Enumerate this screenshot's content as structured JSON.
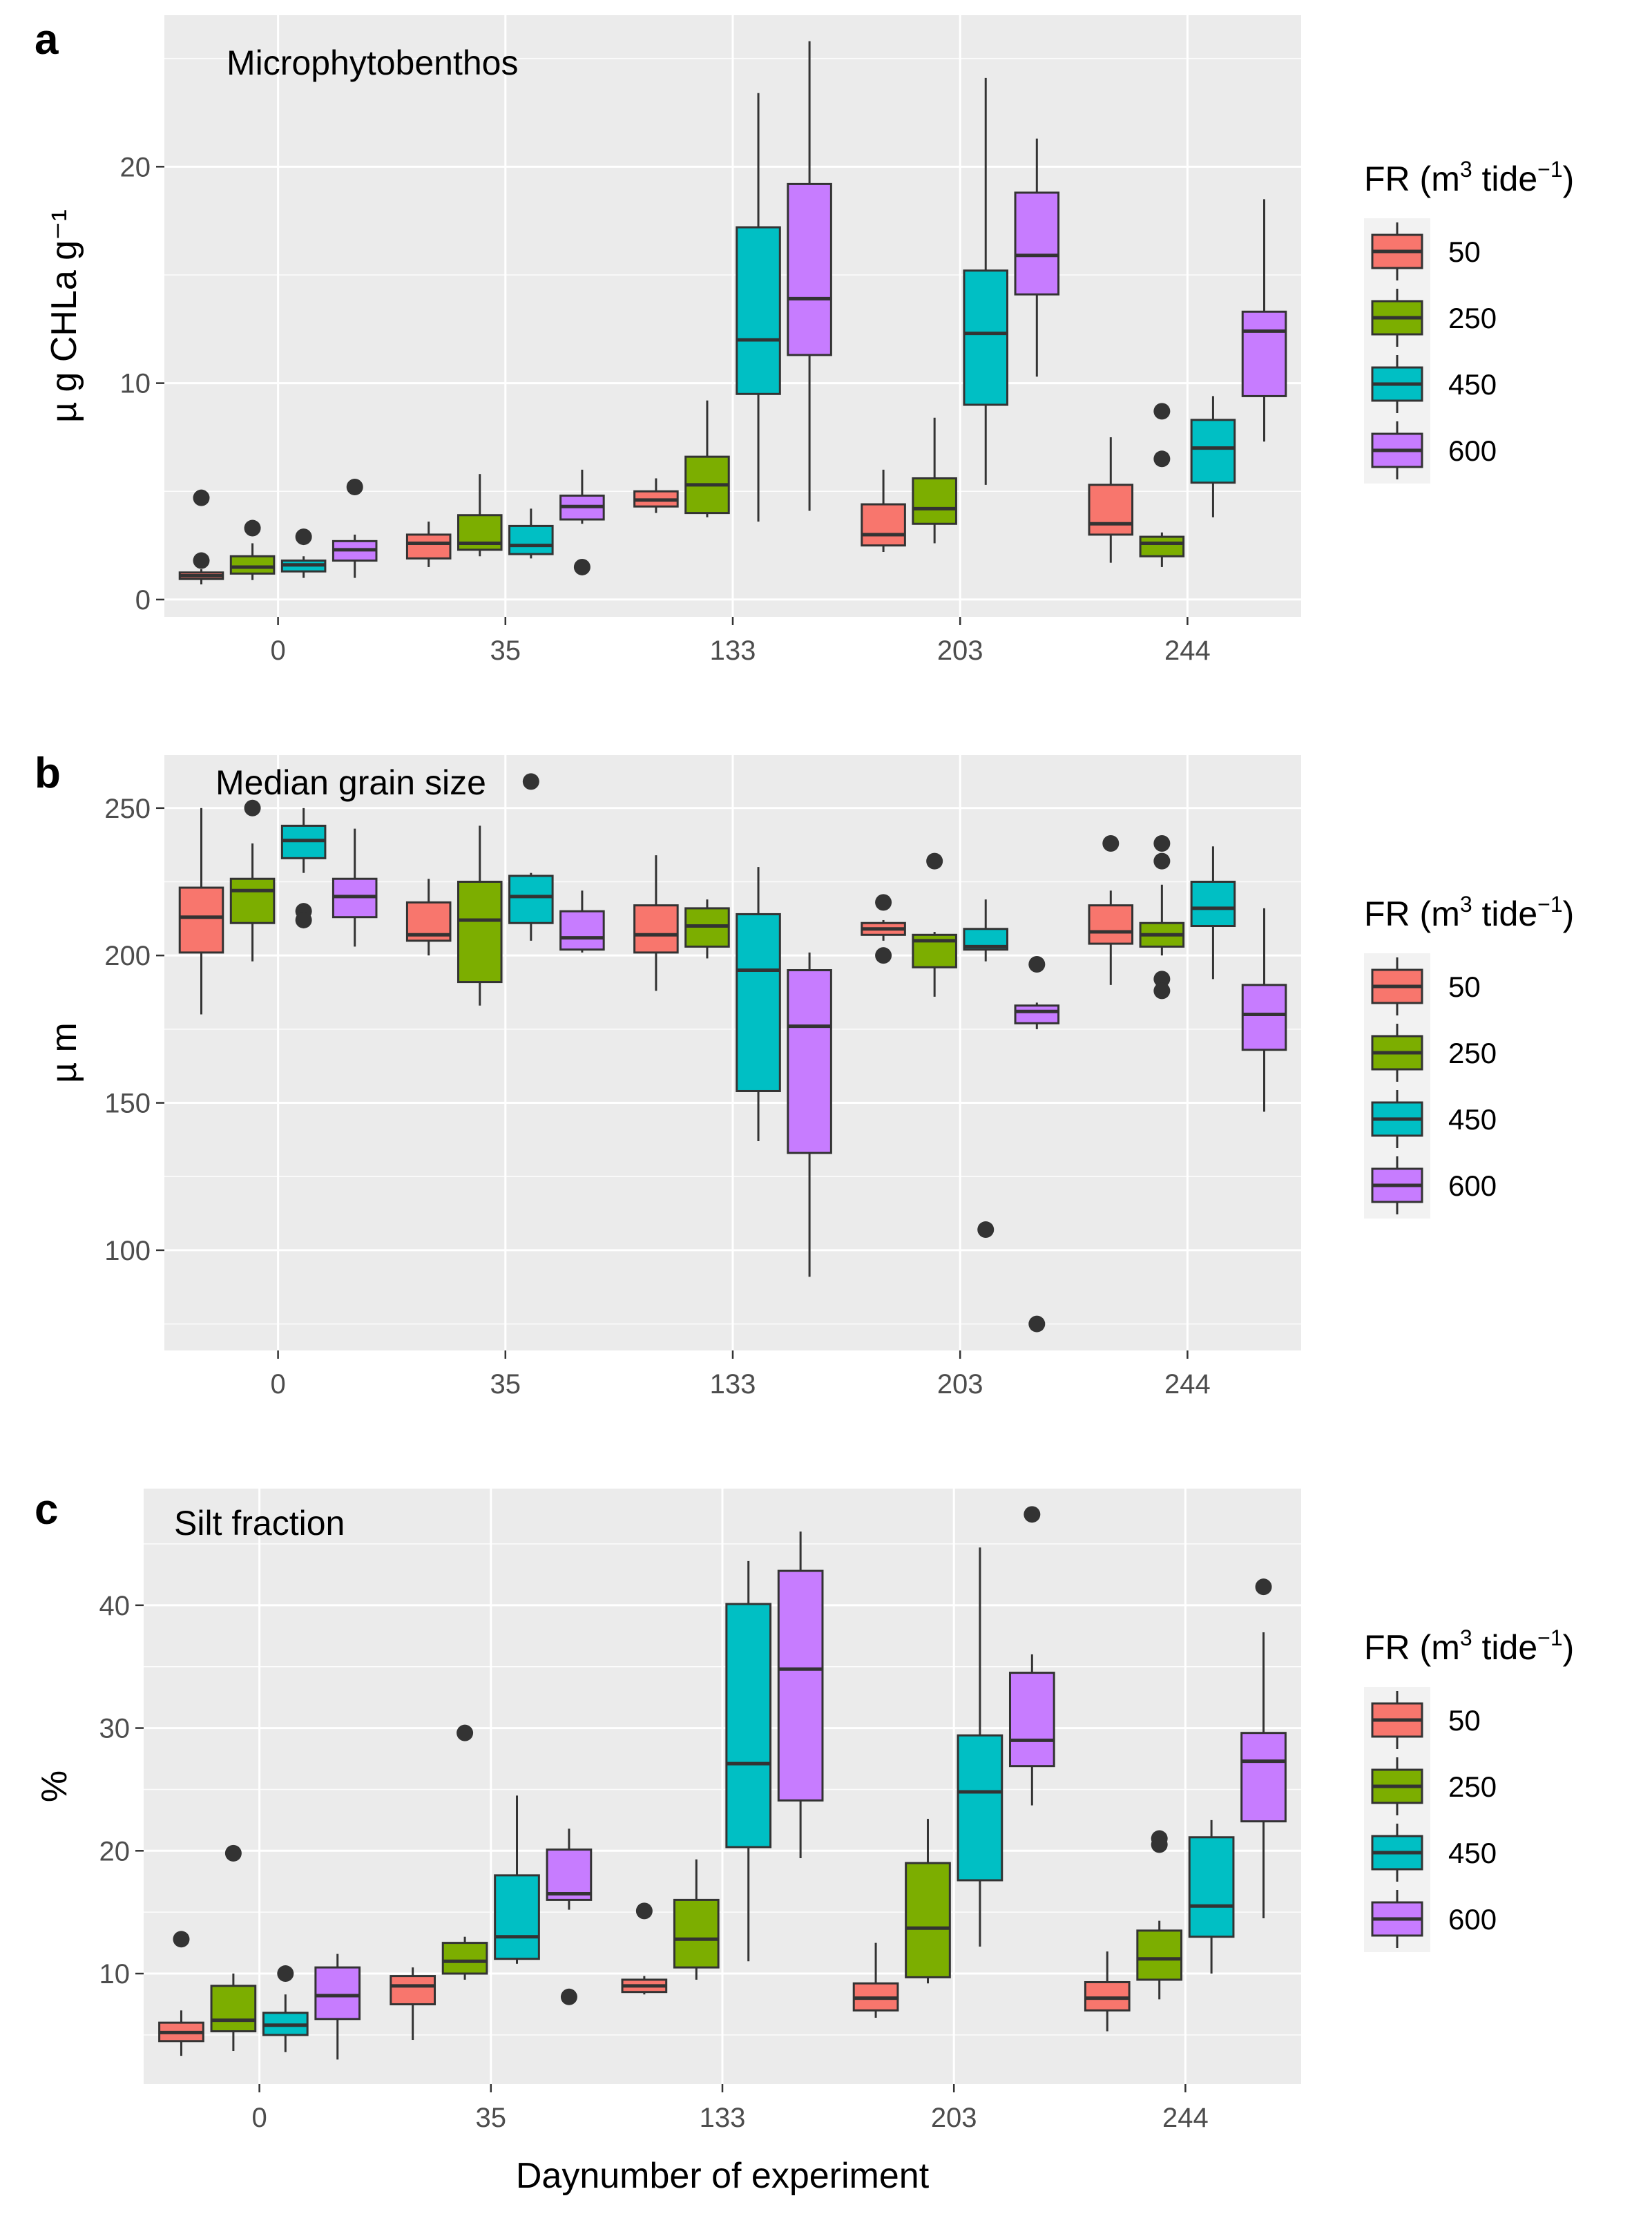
{
  "chart_data": [
    {
      "type": "boxplot",
      "panel_letter": "a",
      "title": "Microphytobenthos",
      "xlabel": "",
      "ylabel": "µ g CHLa g⁻¹",
      "categories": [
        "0",
        "35",
        "133",
        "203",
        "244"
      ],
      "yticks": [
        0,
        10,
        20
      ],
      "ytick_labels": [
        "0",
        "10",
        "20"
      ],
      "ylim": [
        -0.8,
        27
      ],
      "series": [
        {
          "name": "50",
          "color": "#F8766D",
          "boxes": [
            {
              "q1": 0.95,
              "median": 1.1,
              "q3": 1.25,
              "lo": 0.7,
              "hi": 1.4,
              "outliers": [
                4.7,
                1.8
              ]
            },
            {
              "q1": 1.9,
              "median": 2.6,
              "q3": 3.0,
              "lo": 1.5,
              "hi": 3.6,
              "outliers": []
            },
            {
              "q1": 4.3,
              "median": 4.6,
              "q3": 5.0,
              "lo": 4.0,
              "hi": 5.6,
              "outliers": []
            },
            {
              "q1": 2.5,
              "median": 3.0,
              "q3": 4.4,
              "lo": 2.2,
              "hi": 6.0,
              "outliers": []
            },
            {
              "q1": 3.0,
              "median": 3.5,
              "q3": 5.3,
              "lo": 1.7,
              "hi": 7.5,
              "outliers": []
            }
          ]
        },
        {
          "name": "250",
          "color": "#7CAE00",
          "boxes": [
            {
              "q1": 1.2,
              "median": 1.5,
              "q3": 2.0,
              "lo": 0.9,
              "hi": 2.6,
              "outliers": [
                3.3
              ]
            },
            {
              "q1": 2.3,
              "median": 2.6,
              "q3": 3.9,
              "lo": 2.0,
              "hi": 5.8,
              "outliers": []
            },
            {
              "q1": 4.0,
              "median": 5.3,
              "q3": 6.6,
              "lo": 3.8,
              "hi": 9.2,
              "outliers": []
            },
            {
              "q1": 3.5,
              "median": 4.2,
              "q3": 5.6,
              "lo": 2.6,
              "hi": 8.4,
              "outliers": []
            },
            {
              "q1": 2.0,
              "median": 2.6,
              "q3": 2.9,
              "lo": 1.5,
              "hi": 3.1,
              "outliers": [
                8.7,
                6.5
              ]
            }
          ]
        },
        {
          "name": "450",
          "color": "#00BFC4",
          "boxes": [
            {
              "q1": 1.3,
              "median": 1.6,
              "q3": 1.8,
              "lo": 1.0,
              "hi": 2.0,
              "outliers": [
                2.9
              ]
            },
            {
              "q1": 2.1,
              "median": 2.5,
              "q3": 3.4,
              "lo": 1.9,
              "hi": 4.2,
              "outliers": []
            },
            {
              "q1": 9.5,
              "median": 12.0,
              "q3": 17.2,
              "lo": 3.6,
              "hi": 23.4,
              "outliers": []
            },
            {
              "q1": 9.0,
              "median": 12.3,
              "q3": 15.2,
              "lo": 5.3,
              "hi": 24.1,
              "outliers": []
            },
            {
              "q1": 5.4,
              "median": 7.0,
              "q3": 8.3,
              "lo": 3.8,
              "hi": 9.4,
              "outliers": []
            }
          ]
        },
        {
          "name": "600",
          "color": "#C77CFF",
          "boxes": [
            {
              "q1": 1.8,
              "median": 2.3,
              "q3": 2.7,
              "lo": 1.0,
              "hi": 3.0,
              "outliers": [
                5.2
              ]
            },
            {
              "q1": 3.7,
              "median": 4.3,
              "q3": 4.8,
              "lo": 3.5,
              "hi": 6.0,
              "outliers": [
                1.5
              ]
            },
            {
              "q1": 11.3,
              "median": 13.9,
              "q3": 19.2,
              "lo": 4.1,
              "hi": 25.8,
              "outliers": []
            },
            {
              "q1": 14.1,
              "median": 15.9,
              "q3": 18.8,
              "lo": 10.3,
              "hi": 21.3,
              "outliers": []
            },
            {
              "q1": 9.4,
              "median": 12.4,
              "q3": 13.3,
              "lo": 7.3,
              "hi": 18.5,
              "outliers": []
            }
          ]
        }
      ]
    },
    {
      "type": "boxplot",
      "panel_letter": "b",
      "title": "Median grain size",
      "xlabel": "",
      "ylabel": "µ m",
      "categories": [
        "0",
        "35",
        "133",
        "203",
        "244"
      ],
      "yticks": [
        100,
        150,
        200,
        250
      ],
      "ytick_labels": [
        "100",
        "150",
        "200",
        "250"
      ],
      "ylim": [
        66,
        268
      ],
      "series": [
        {
          "name": "50",
          "color": "#F8766D",
          "boxes": [
            {
              "q1": 201,
              "median": 213,
              "q3": 223,
              "lo": 180,
              "hi": 250,
              "outliers": []
            },
            {
              "q1": 205,
              "median": 207,
              "q3": 218,
              "lo": 200,
              "hi": 226,
              "outliers": []
            },
            {
              "q1": 201,
              "median": 207,
              "q3": 217,
              "lo": 188,
              "hi": 234,
              "outliers": []
            },
            {
              "q1": 207,
              "median": 209,
              "q3": 211,
              "lo": 205,
              "hi": 212,
              "outliers": [
                218,
                200
              ]
            },
            {
              "q1": 204,
              "median": 208,
              "q3": 217,
              "lo": 190,
              "hi": 222,
              "outliers": [
                238
              ]
            }
          ]
        },
        {
          "name": "250",
          "color": "#7CAE00",
          "boxes": [
            {
              "q1": 211,
              "median": 222,
              "q3": 226,
              "lo": 198,
              "hi": 238,
              "outliers": [
                250
              ]
            },
            {
              "q1": 191,
              "median": 212,
              "q3": 225,
              "lo": 183,
              "hi": 244,
              "outliers": []
            },
            {
              "q1": 203,
              "median": 210,
              "q3": 216,
              "lo": 199,
              "hi": 219,
              "outliers": []
            },
            {
              "q1": 196,
              "median": 205,
              "q3": 207,
              "lo": 186,
              "hi": 208,
              "outliers": [
                232
              ]
            },
            {
              "q1": 203,
              "median": 207,
              "q3": 211,
              "lo": 200,
              "hi": 224,
              "outliers": [
                238,
                232,
                192,
                188
              ]
            }
          ]
        },
        {
          "name": "450",
          "color": "#00BFC4",
          "boxes": [
            {
              "q1": 233,
              "median": 239,
              "q3": 244,
              "lo": 228,
              "hi": 250,
              "outliers": [
                215,
                212
              ]
            },
            {
              "q1": 211,
              "median": 220,
              "q3": 227,
              "lo": 205,
              "hi": 228,
              "outliers": [
                259
              ]
            },
            {
              "q1": 154,
              "median": 195,
              "q3": 214,
              "lo": 137,
              "hi": 230,
              "outliers": []
            },
            {
              "q1": 202,
              "median": 203,
              "q3": 209,
              "lo": 198,
              "hi": 219,
              "outliers": [
                107
              ]
            },
            {
              "q1": 210,
              "median": 216,
              "q3": 225,
              "lo": 192,
              "hi": 237,
              "outliers": []
            }
          ]
        },
        {
          "name": "600",
          "color": "#C77CFF",
          "boxes": [
            {
              "q1": 213,
              "median": 220,
              "q3": 226,
              "lo": 203,
              "hi": 243,
              "outliers": []
            },
            {
              "q1": 202,
              "median": 206,
              "q3": 215,
              "lo": 201,
              "hi": 222,
              "outliers": []
            },
            {
              "q1": 133,
              "median": 176,
              "q3": 195,
              "lo": 91,
              "hi": 201,
              "outliers": []
            },
            {
              "q1": 177,
              "median": 181,
              "q3": 183,
              "lo": 175,
              "hi": 184,
              "outliers": [
                197,
                75
              ]
            },
            {
              "q1": 168,
              "median": 180,
              "q3": 190,
              "lo": 147,
              "hi": 216,
              "outliers": []
            }
          ]
        }
      ]
    },
    {
      "type": "boxplot",
      "panel_letter": "c",
      "title": "Silt fraction",
      "xlabel": "Daynumber of experiment",
      "ylabel": "%",
      "categories": [
        "0",
        "35",
        "133",
        "203",
        "244"
      ],
      "yticks": [
        10,
        20,
        30,
        40
      ],
      "ytick_labels": [
        "10",
        "20",
        "30",
        "40"
      ],
      "ylim": [
        1.0,
        49.5
      ],
      "series": [
        {
          "name": "50",
          "color": "#F8766D",
          "boxes": [
            {
              "q1": 4.5,
              "median": 5.2,
              "q3": 6.0,
              "lo": 3.3,
              "hi": 7.0,
              "outliers": [
                12.8
              ]
            },
            {
              "q1": 7.5,
              "median": 9.0,
              "q3": 9.8,
              "lo": 4.6,
              "hi": 10.5,
              "outliers": []
            },
            {
              "q1": 8.5,
              "median": 9.0,
              "q3": 9.5,
              "lo": 8.3,
              "hi": 9.8,
              "outliers": [
                15.1
              ]
            },
            {
              "q1": 7.0,
              "median": 8.0,
              "q3": 9.2,
              "lo": 6.4,
              "hi": 12.5,
              "outliers": []
            },
            {
              "q1": 7.0,
              "median": 8.0,
              "q3": 9.3,
              "lo": 5.3,
              "hi": 11.8,
              "outliers": []
            }
          ]
        },
        {
          "name": "250",
          "color": "#7CAE00",
          "boxes": [
            {
              "q1": 5.3,
              "median": 6.2,
              "q3": 9.0,
              "lo": 3.7,
              "hi": 10.0,
              "outliers": [
                19.8
              ]
            },
            {
              "q1": 10.0,
              "median": 11.0,
              "q3": 12.5,
              "lo": 9.5,
              "hi": 13.0,
              "outliers": [
                29.6
              ]
            },
            {
              "q1": 10.5,
              "median": 12.8,
              "q3": 16.0,
              "lo": 9.5,
              "hi": 19.3,
              "outliers": []
            },
            {
              "q1": 9.7,
              "median": 13.7,
              "q3": 19.0,
              "lo": 9.2,
              "hi": 22.6,
              "outliers": []
            },
            {
              "q1": 9.5,
              "median": 11.2,
              "q3": 13.5,
              "lo": 7.9,
              "hi": 14.3,
              "outliers": [
                21.0,
                20.5
              ]
            }
          ]
        },
        {
          "name": "450",
          "color": "#00BFC4",
          "boxes": [
            {
              "q1": 5.0,
              "median": 5.8,
              "q3": 6.8,
              "lo": 3.6,
              "hi": 8.3,
              "outliers": [
                10.0
              ]
            },
            {
              "q1": 11.2,
              "median": 13.0,
              "q3": 18.0,
              "lo": 10.8,
              "hi": 24.5,
              "outliers": []
            },
            {
              "q1": 20.3,
              "median": 27.1,
              "q3": 40.1,
              "lo": 11.0,
              "hi": 43.6,
              "outliers": []
            },
            {
              "q1": 17.6,
              "median": 24.8,
              "q3": 29.4,
              "lo": 12.2,
              "hi": 44.7,
              "outliers": []
            },
            {
              "q1": 13.0,
              "median": 15.5,
              "q3": 21.1,
              "lo": 10.0,
              "hi": 22.5,
              "outliers": []
            }
          ]
        },
        {
          "name": "600",
          "color": "#C77CFF",
          "boxes": [
            {
              "q1": 6.3,
              "median": 8.2,
              "q3": 10.5,
              "lo": 3.0,
              "hi": 11.6,
              "outliers": []
            },
            {
              "q1": 16.0,
              "median": 16.5,
              "q3": 20.1,
              "lo": 15.2,
              "hi": 21.8,
              "outliers": [
                8.1
              ]
            },
            {
              "q1": 24.1,
              "median": 34.8,
              "q3": 42.8,
              "lo": 19.4,
              "hi": 46.0,
              "outliers": []
            },
            {
              "q1": 26.9,
              "median": 29.0,
              "q3": 34.5,
              "lo": 23.7,
              "hi": 36.0,
              "outliers": [
                47.4
              ]
            },
            {
              "q1": 22.4,
              "median": 27.3,
              "q3": 29.6,
              "lo": 14.5,
              "hi": 37.8,
              "outliers": [
                41.5
              ]
            }
          ]
        }
      ]
    }
  ],
  "legend": {
    "title_prefix": "FR (m",
    "title_exp": "3",
    "title_mid": " tide",
    "title_exp2": "−1",
    "title_suffix": ")",
    "items": [
      {
        "label": "50",
        "color": "#F8766D"
      },
      {
        "label": "250",
        "color": "#7CAE00"
      },
      {
        "label": "450",
        "color": "#00BFC4"
      },
      {
        "label": "600",
        "color": "#C77CFF"
      }
    ]
  }
}
